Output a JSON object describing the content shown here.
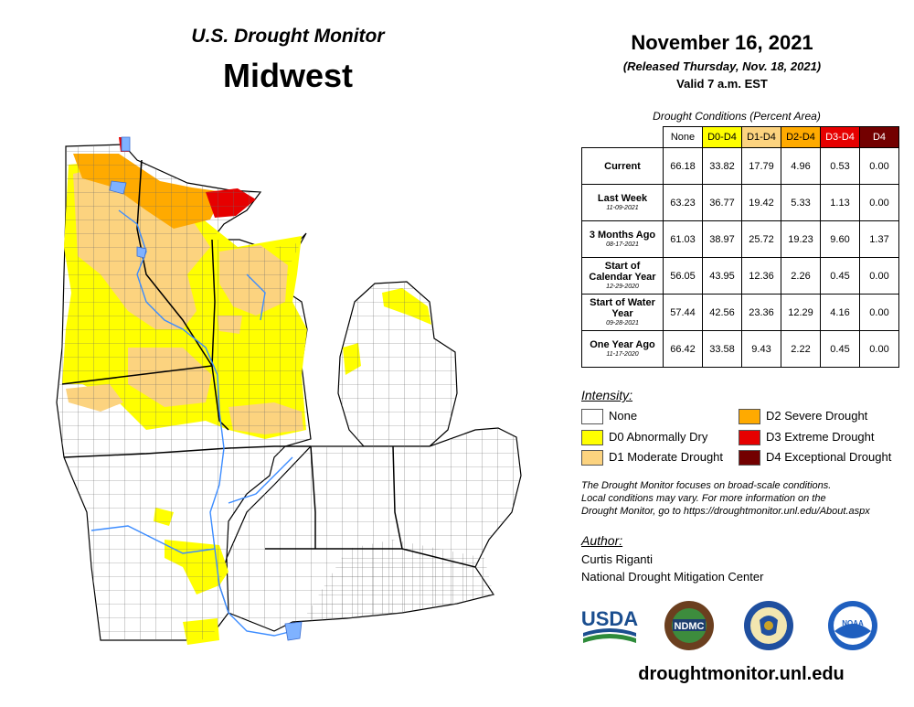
{
  "header": {
    "subtitle": "U.S. Drought Monitor",
    "region": "Midwest",
    "date": "November 16, 2021",
    "released": "(Released Thursday, Nov. 18, 2021)",
    "valid": "Valid 7 a.m. EST"
  },
  "table": {
    "title": "Drought Conditions (Percent Area)",
    "columns": [
      {
        "label": "None",
        "color": "#ffffff"
      },
      {
        "label": "D0-D4",
        "color": "#ffff00"
      },
      {
        "label": "D1-D4",
        "color": "#fcd37f"
      },
      {
        "label": "D2-D4",
        "color": "#ffaa00"
      },
      {
        "label": "D3-D4",
        "color": "#e60000"
      },
      {
        "label": "D4",
        "color": "#730000"
      }
    ],
    "rows": [
      {
        "label": "Current",
        "sub": "",
        "values": [
          "66.18",
          "33.82",
          "17.79",
          "4.96",
          "0.53",
          "0.00"
        ]
      },
      {
        "label": "Last Week",
        "sub": "11-09-2021",
        "values": [
          "63.23",
          "36.77",
          "19.42",
          "5.33",
          "1.13",
          "0.00"
        ]
      },
      {
        "label": "3 Months Ago",
        "sub": "08-17-2021",
        "values": [
          "61.03",
          "38.97",
          "25.72",
          "19.23",
          "9.60",
          "1.37"
        ]
      },
      {
        "label": "Start of Calendar Year",
        "sub": "12-29-2020",
        "values": [
          "56.05",
          "43.95",
          "12.36",
          "2.26",
          "0.45",
          "0.00"
        ]
      },
      {
        "label": "Start of Water Year",
        "sub": "09-28-2021",
        "values": [
          "57.44",
          "42.56",
          "23.36",
          "12.29",
          "4.16",
          "0.00"
        ]
      },
      {
        "label": "One Year Ago",
        "sub": "11-17-2020",
        "values": [
          "66.42",
          "33.58",
          "9.43",
          "2.22",
          "0.45",
          "0.00"
        ]
      }
    ]
  },
  "legend": {
    "title": "Intensity:",
    "items": [
      {
        "label": "None",
        "color": "#ffffff"
      },
      {
        "label": "D0 Abnormally Dry",
        "color": "#ffff00"
      },
      {
        "label": "D1 Moderate Drought",
        "color": "#fcd37f"
      },
      {
        "label": "D2 Severe Drought",
        "color": "#ffaa00"
      },
      {
        "label": "D3 Extreme Drought",
        "color": "#e60000"
      },
      {
        "label": "D4 Exceptional Drought",
        "color": "#730000"
      }
    ]
  },
  "disclaimer": {
    "line1": "The Drought Monitor focuses on broad-scale conditions.",
    "line2": "Local conditions may vary. For more information on the",
    "line3": "Drought Monitor, go to https://droughtmonitor.unl.edu/About.aspx"
  },
  "author": {
    "label": "Author:",
    "name": "Curtis Riganti",
    "org": "National Drought Mitigation Center"
  },
  "logos": {
    "usda": "USDA",
    "ndmc": "NDMC",
    "noaa": "NOAA"
  },
  "website": "droughtmonitor.unl.edu",
  "map": {
    "water_color": "#7fb2ff",
    "river_color": "#3c8cff"
  }
}
